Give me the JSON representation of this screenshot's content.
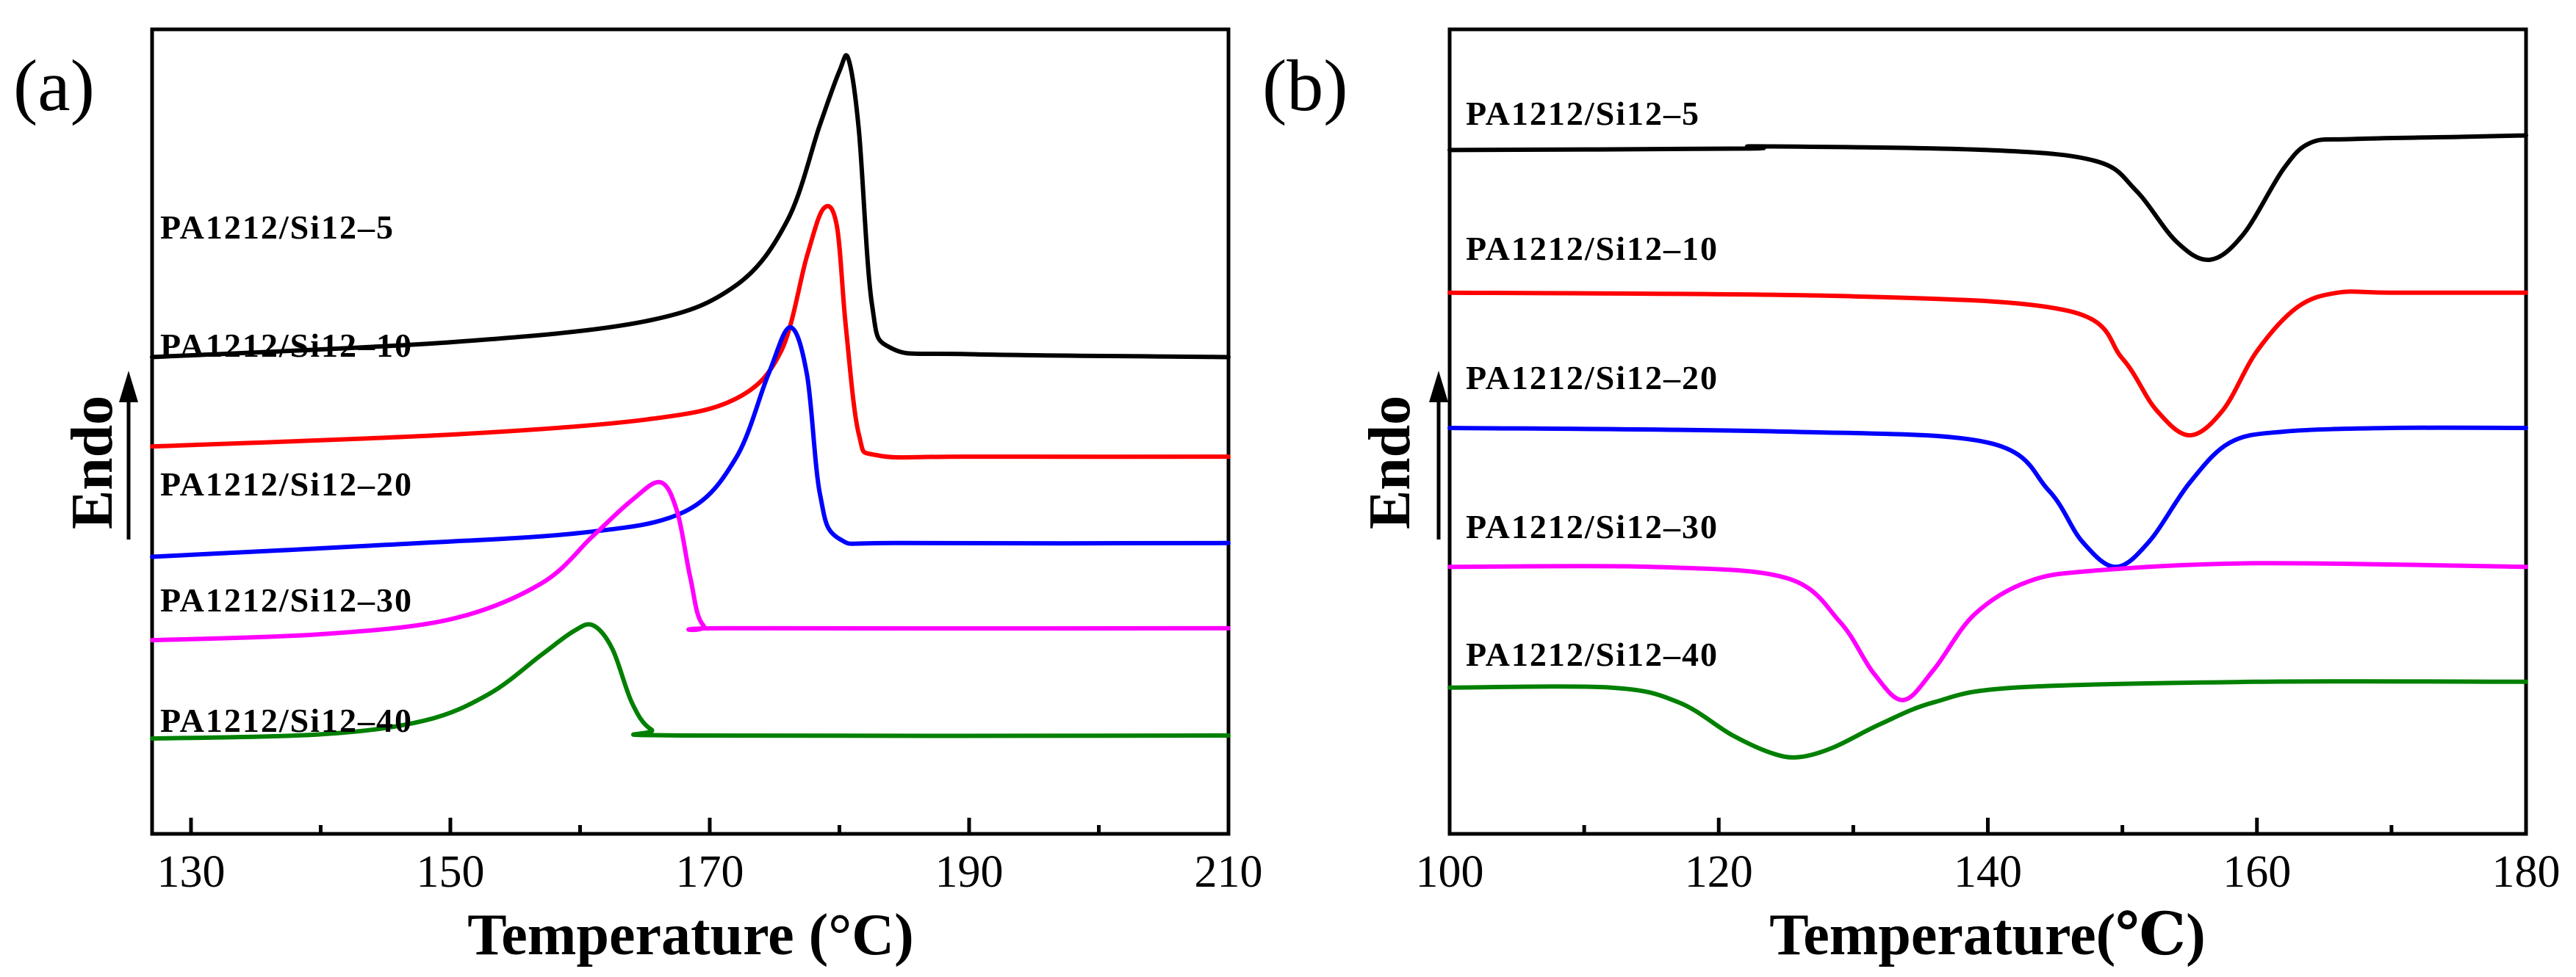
{
  "chart_data": [
    {
      "panel": "(a)",
      "type": "line",
      "xlabel": "Temperature (°C)",
      "ylabel": "Endo",
      "xlim": [
        127,
        210
      ],
      "xticks": [
        130,
        150,
        170,
        190,
        210
      ],
      "grid": false,
      "series": [
        {
          "name": "PA1212/Si12–5",
          "color": "#000000",
          "x": [
            127,
            150,
            165,
            172,
            176,
            178.5,
            180,
            180.7,
            181.5,
            182.5,
            184,
            190,
            210
          ],
          "y": [
            0.55,
            0.575,
            0.61,
            0.67,
            0.78,
            0.94,
            1.03,
            1.05,
            0.93,
            0.64,
            0.565,
            0.555,
            0.55
          ]
        },
        {
          "name": "PA1212/Si12–10",
          "color": "#ff0000",
          "x": [
            127,
            150,
            165,
            172,
            175.5,
            177.5,
            178.8,
            179.8,
            180.5,
            181.5,
            183,
            190,
            210
          ],
          "y": [
            0.4,
            0.42,
            0.445,
            0.48,
            0.56,
            0.72,
            0.8,
            0.77,
            0.6,
            0.42,
            0.385,
            0.383,
            0.383
          ]
        },
        {
          "name": "PA1212/Si12–20",
          "color": "#0000ff",
          "x": [
            127,
            145,
            160,
            168,
            172,
            174.5,
            176.2,
            177.5,
            178.5,
            180,
            185,
            210
          ],
          "y": [
            0.215,
            0.235,
            0.255,
            0.29,
            0.38,
            0.52,
            0.6,
            0.52,
            0.32,
            0.245,
            0.238,
            0.238
          ]
        },
        {
          "name": "PA1212/Si12–30",
          "color": "#ff00ff",
          "x": [
            127,
            140,
            150,
            157,
            161,
            164,
            166.2,
            167.5,
            168.5,
            169.5,
            172,
            210
          ],
          "y": [
            0.075,
            0.085,
            0.11,
            0.17,
            0.25,
            0.31,
            0.34,
            0.29,
            0.18,
            0.1,
            0.095,
            0.095
          ]
        },
        {
          "name": "PA1212/Si12–40",
          "color": "#008000",
          "x": [
            127,
            140,
            148,
            153,
            157,
            159.5,
            161,
            162.5,
            164,
            165.5,
            168,
            210
          ],
          "y": [
            -0.09,
            -0.083,
            -0.06,
            -0.015,
            0.05,
            0.09,
            0.1,
            0.06,
            -0.03,
            -0.075,
            -0.085,
            -0.085
          ]
        }
      ]
    },
    {
      "panel": "(b)",
      "type": "line",
      "xlabel": "Temperature(℃)",
      "ylabel": "Endo",
      "xlim": [
        100,
        180
      ],
      "xticks": [
        100,
        120,
        140,
        160,
        180
      ],
      "grid": false,
      "series": [
        {
          "name": "PA1212/Si12–5",
          "color": "#000000",
          "x": [
            100,
            122,
            123,
            140,
            148,
            151,
            154,
            156.5,
            159,
            162,
            164,
            167,
            175,
            180
          ],
          "y": [
            0.885,
            0.887,
            0.89,
            0.885,
            0.87,
            0.83,
            0.76,
            0.735,
            0.77,
            0.86,
            0.895,
            0.9,
            0.903,
            0.905
          ]
        },
        {
          "name": "PA1212/Si12–10",
          "color": "#ff0000",
          "x": [
            100,
            130,
            146,
            150,
            152.5,
            155,
            157.5,
            160,
            163,
            166,
            170,
            180
          ],
          "y": [
            0.69,
            0.685,
            0.665,
            0.6,
            0.53,
            0.495,
            0.53,
            0.61,
            0.67,
            0.69,
            0.69,
            0.69
          ]
        },
        {
          "name": "PA1212/Si12–20",
          "color": "#0000ff",
          "x": [
            100,
            125,
            140,
            144.5,
            147,
            149.5,
            152,
            155,
            158,
            162,
            170,
            180
          ],
          "y": [
            0.505,
            0.5,
            0.485,
            0.42,
            0.35,
            0.315,
            0.35,
            0.43,
            0.485,
            0.5,
            0.505,
            0.505
          ]
        },
        {
          "name": "PA1212/Si12–30",
          "color": "#ff00ff",
          "x": [
            100,
            115,
            125,
            129,
            131.5,
            133.7,
            136,
            139,
            143,
            148,
            160,
            180
          ],
          "y": [
            0.315,
            0.315,
            0.3,
            0.24,
            0.17,
            0.133,
            0.175,
            0.25,
            0.295,
            0.31,
            0.32,
            0.315
          ]
        },
        {
          "name": "PA1212/Si12–40",
          "color": "#008000",
          "x": [
            100,
            112,
            117,
            121,
            124,
            126,
            128.5,
            132,
            136,
            142,
            160,
            180
          ],
          "y": [
            0.15,
            0.15,
            0.13,
            0.085,
            0.06,
            0.055,
            0.068,
            0.1,
            0.13,
            0.15,
            0.158,
            0.158
          ]
        }
      ]
    }
  ]
}
